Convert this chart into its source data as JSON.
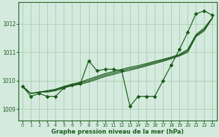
{
  "xlabel": "Graphe pression niveau de la mer (hPa)",
  "background_color": "#d4eade",
  "grid_color": "#9ec8a0",
  "line_color": "#1a5c1a",
  "xlim": [
    -0.5,
    23.5
  ],
  "ylim": [
    1008.6,
    1012.75
  ],
  "yticks": [
    1009,
    1010,
    1011,
    1012
  ],
  "xticks": [
    0,
    1,
    2,
    3,
    4,
    5,
    6,
    7,
    8,
    9,
    10,
    11,
    12,
    13,
    14,
    15,
    16,
    17,
    18,
    19,
    20,
    21,
    22,
    23
  ],
  "zigzag": [
    1009.8,
    1009.45,
    1009.55,
    1009.45,
    1009.45,
    1009.75,
    1009.85,
    1009.9,
    1010.7,
    1010.35,
    1010.4,
    1010.4,
    1010.35,
    1009.1,
    1009.45,
    1009.45,
    1009.45,
    1010.0,
    1010.55,
    1011.1,
    1011.7,
    1012.35,
    1012.45,
    1012.3
  ],
  "trend1": [
    1009.8,
    1009.55,
    1009.6,
    1009.6,
    1009.65,
    1009.75,
    1009.82,
    1009.88,
    1009.95,
    1010.05,
    1010.15,
    1010.22,
    1010.3,
    1010.37,
    1010.44,
    1010.52,
    1010.6,
    1010.68,
    1010.77,
    1010.87,
    1011.0,
    1011.55,
    1011.75,
    1012.2
  ],
  "trend2": [
    1009.8,
    1009.55,
    1009.6,
    1009.65,
    1009.7,
    1009.8,
    1009.88,
    1009.95,
    1010.05,
    1010.15,
    1010.25,
    1010.32,
    1010.4,
    1010.47,
    1010.53,
    1010.6,
    1010.68,
    1010.75,
    1010.83,
    1010.92,
    1011.1,
    1011.62,
    1011.85,
    1012.22
  ],
  "trend3": [
    1009.8,
    1009.55,
    1009.6,
    1009.62,
    1009.68,
    1009.78,
    1009.85,
    1009.92,
    1010.0,
    1010.1,
    1010.2,
    1010.27,
    1010.35,
    1010.42,
    1010.48,
    1010.56,
    1010.64,
    1010.72,
    1010.8,
    1010.9,
    1011.05,
    1011.58,
    1011.8,
    1012.21
  ],
  "marker_size": 2.8,
  "line_width": 0.9
}
